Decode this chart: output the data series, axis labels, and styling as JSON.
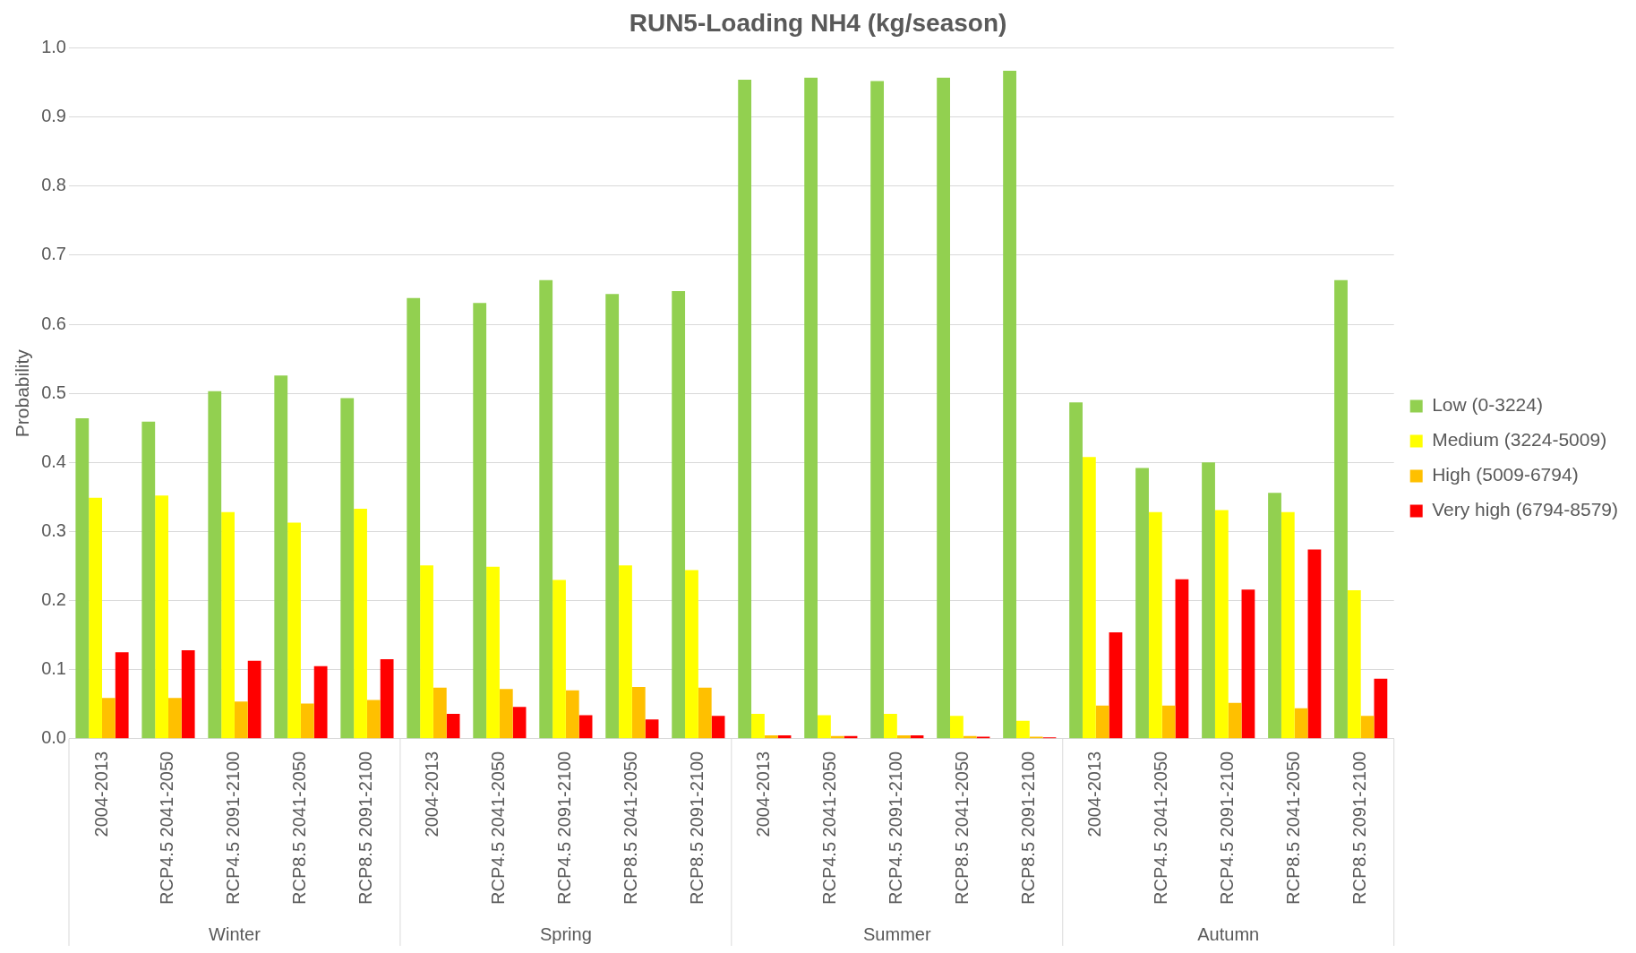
{
  "chart_data": {
    "type": "bar",
    "title": "RUN5-Loading NH4 (kg/season)",
    "ylabel": "Probability",
    "categories": [
      "2004-2013",
      "RCP4.5 2041-2050",
      "RCP4.5 2091-2100",
      "RCP8.5 2041-2050",
      "RCP8.5 2091-2100",
      "2004-2013",
      "RCP4.5 2041-2050",
      "RCP4.5 2091-2100",
      "RCP8.5 2041-2050",
      "RCP8.5 2091-2100",
      "2004-2013",
      "RCP4.5 2041-2050",
      "RCP4.5 2091-2100",
      "RCP8.5 2041-2050",
      "RCP8.5 2091-2100",
      "2004-2013",
      "RCP4.5 2041-2050",
      "RCP4.5 2091-2100",
      "RCP8.5 2041-2050",
      "RCP8.5 2091-2100"
    ],
    "series": [
      {
        "name": "Low (0-3224)",
        "color": "#92d050",
        "values": [
          0.464,
          0.459,
          0.503,
          0.526,
          0.493,
          0.638,
          0.631,
          0.664,
          0.644,
          0.648,
          0.954,
          0.957,
          0.952,
          0.957,
          0.967,
          0.487,
          0.392,
          0.4,
          0.356,
          0.664
        ]
      },
      {
        "name": "Medium (3224-5009)",
        "color": "#ffff00",
        "values": [
          0.349,
          0.352,
          0.328,
          0.313,
          0.333,
          0.251,
          0.249,
          0.23,
          0.251,
          0.244,
          0.036,
          0.034,
          0.036,
          0.033,
          0.026,
          0.408,
          0.328,
          0.331,
          0.328,
          0.215
        ]
      },
      {
        "name": "High (5009-6794)",
        "color": "#ffc000",
        "values": [
          0.059,
          0.059,
          0.054,
          0.051,
          0.056,
          0.074,
          0.072,
          0.07,
          0.075,
          0.074,
          0.005,
          0.004,
          0.005,
          0.004,
          0.003,
          0.048,
          0.048,
          0.052,
          0.044,
          0.033
        ]
      },
      {
        "name": "Very high (6794-8579)",
        "color": "#ff0000",
        "values": [
          0.125,
          0.128,
          0.113,
          0.105,
          0.115,
          0.036,
          0.046,
          0.034,
          0.028,
          0.033,
          0.005,
          0.004,
          0.005,
          0.003,
          0.002,
          0.154,
          0.231,
          0.216,
          0.274,
          0.087
        ]
      }
    ],
    "annotations": [
      "Winter",
      "Spring",
      "Summer",
      "Autumn"
    ],
    "ylim": [
      0,
      1
    ],
    "yticks": [
      {
        "value": 0,
        "label": "0.0"
      },
      {
        "value": 0.1,
        "label": "0.1"
      },
      {
        "value": 0.2,
        "label": "0.2"
      },
      {
        "value": 0.3,
        "label": "0.3"
      },
      {
        "value": 0.4,
        "label": "0.4"
      },
      {
        "value": 0.5,
        "label": "0.5"
      },
      {
        "value": 0.6,
        "label": "0.6"
      },
      {
        "value": 0.7,
        "label": "0.7"
      },
      {
        "value": 0.8,
        "label": "0.8"
      },
      {
        "value": 0.9,
        "label": "0.9"
      },
      {
        "value": 1,
        "label": "1.0"
      }
    ],
    "grid": "y",
    "legend": "right"
  }
}
